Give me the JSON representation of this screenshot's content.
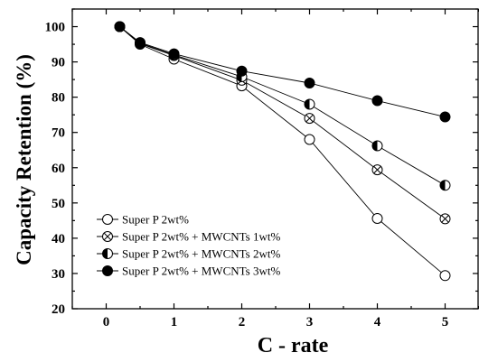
{
  "chart_data": {
    "type": "line",
    "xlabel": "C - rate",
    "ylabel": "Capacity Retention (%)",
    "xlim": [
      -0.5,
      5.5
    ],
    "ylim": [
      20,
      105
    ],
    "x_ticks": [
      0,
      1,
      2,
      3,
      4,
      5
    ],
    "y_ticks": [
      20,
      30,
      40,
      50,
      60,
      70,
      80,
      90,
      100
    ],
    "x_tick_labels": [
      "0",
      "1",
      "2",
      "3",
      "4",
      "5"
    ],
    "y_tick_labels": [
      "20",
      "30",
      "40",
      "50",
      "60",
      "70",
      "80",
      "90",
      "100"
    ],
    "grid": false,
    "legend_position": "bottom-left",
    "x": [
      0.2,
      0.5,
      1,
      2,
      3,
      4,
      5
    ],
    "series": [
      {
        "name": "Super P 2wt%",
        "marker": "open-circle",
        "values": [
          100,
          95.0,
          90.8,
          83.2,
          68.0,
          45.6,
          29.4
        ]
      },
      {
        "name": "Super P 2wt% + MWCNTs 1wt%",
        "marker": "crossed-circle",
        "values": [
          100,
          95.2,
          91.8,
          84.8,
          74.0,
          59.4,
          45.5
        ]
      },
      {
        "name": "Super P 2wt% + MWCNTs 2wt%",
        "marker": "half-filled-circle",
        "values": [
          100,
          95.3,
          92.0,
          85.8,
          78.0,
          66.2,
          55.0
        ]
      },
      {
        "name": "Super P 2wt% + MWCNTs 3wt%",
        "marker": "filled-circle",
        "values": [
          100,
          95.5,
          92.3,
          87.4,
          84.0,
          79.0,
          74.4
        ]
      }
    ]
  }
}
